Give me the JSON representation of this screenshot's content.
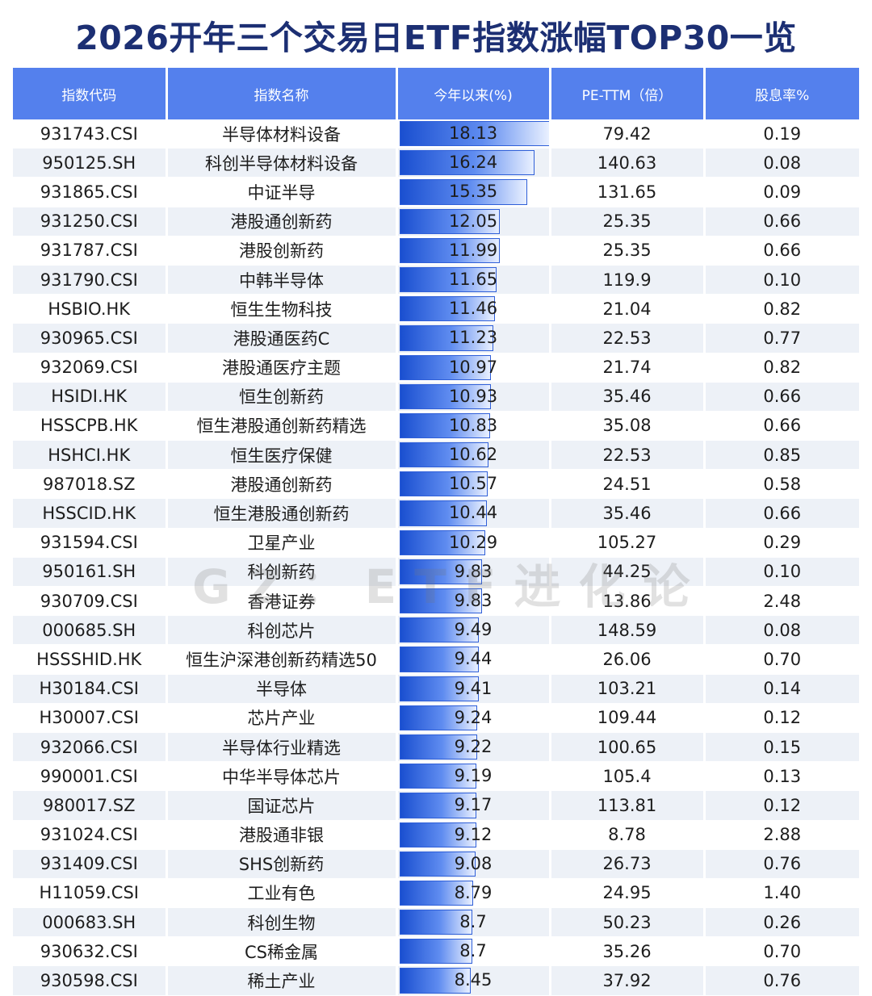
{
  "title": "2026开年三个交易日ETF指数涨幅TOP30一览",
  "watermark": "GZ：ETF进化论",
  "colors": {
    "header_bg": "#5480ed",
    "title": "#1c2f73",
    "bar": "#1a4fd0"
  },
  "headers": [
    "指数代码",
    "指数名称",
    "今年以来(%)",
    "PE-TTM（倍）",
    "股息率%"
  ],
  "bar_max": 18.13,
  "rows": [
    {
      "code": "931743.CSI",
      "name": "半导体材料设备",
      "ytd": "18.13",
      "pe": "79.42",
      "div": "0.19"
    },
    {
      "code": "950125.SH",
      "name": "科创半导体材料设备",
      "ytd": "16.24",
      "pe": "140.63",
      "div": "0.08"
    },
    {
      "code": "931865.CSI",
      "name": "中证半导",
      "ytd": "15.35",
      "pe": "131.65",
      "div": "0.09"
    },
    {
      "code": "931250.CSI",
      "name": "港股通创新药",
      "ytd": "12.05",
      "pe": "25.35",
      "div": "0.66"
    },
    {
      "code": "931787.CSI",
      "name": "港股创新药",
      "ytd": "11.99",
      "pe": "25.35",
      "div": "0.66"
    },
    {
      "code": "931790.CSI",
      "name": "中韩半导体",
      "ytd": "11.65",
      "pe": "119.9",
      "div": "0.10"
    },
    {
      "code": "HSBIO.HK",
      "name": "恒生生物科技",
      "ytd": "11.46",
      "pe": "21.04",
      "div": "0.82"
    },
    {
      "code": "930965.CSI",
      "name": "港股通医药C",
      "ytd": "11.23",
      "pe": "22.53",
      "div": "0.77"
    },
    {
      "code": "932069.CSI",
      "name": "港股通医疗主题",
      "ytd": "10.97",
      "pe": "21.74",
      "div": "0.82"
    },
    {
      "code": "HSIDI.HK",
      "name": "恒生创新药",
      "ytd": "10.93",
      "pe": "35.46",
      "div": "0.66"
    },
    {
      "code": "HSSCPB.HK",
      "name": "恒生港股通创新药精选",
      "ytd": "10.83",
      "pe": "35.08",
      "div": "0.66"
    },
    {
      "code": "HSHCI.HK",
      "name": "恒生医疗保健",
      "ytd": "10.62",
      "pe": "22.53",
      "div": "0.85"
    },
    {
      "code": "987018.SZ",
      "name": "港股通创新药",
      "ytd": "10.57",
      "pe": "24.51",
      "div": "0.58"
    },
    {
      "code": "HSSCID.HK",
      "name": "恒生港股通创新药",
      "ytd": "10.44",
      "pe": "35.46",
      "div": "0.66"
    },
    {
      "code": "931594.CSI",
      "name": "卫星产业",
      "ytd": "10.29",
      "pe": "105.27",
      "div": "0.29"
    },
    {
      "code": "950161.SH",
      "name": "科创新药",
      "ytd": "9.83",
      "pe": "44.25",
      "div": "0.10"
    },
    {
      "code": "930709.CSI",
      "name": "香港证券",
      "ytd": "9.83",
      "pe": "13.86",
      "div": "2.48"
    },
    {
      "code": "000685.SH",
      "name": "科创芯片",
      "ytd": "9.49",
      "pe": "148.59",
      "div": "0.08"
    },
    {
      "code": "HSSSHID.HK",
      "name": "恒生沪深港创新药精选50",
      "ytd": "9.44",
      "pe": "26.06",
      "div": "0.70"
    },
    {
      "code": "H30184.CSI",
      "name": "半导体",
      "ytd": "9.41",
      "pe": "103.21",
      "div": "0.14"
    },
    {
      "code": "H30007.CSI",
      "name": "芯片产业",
      "ytd": "9.24",
      "pe": "109.44",
      "div": "0.12"
    },
    {
      "code": "932066.CSI",
      "name": "半导体行业精选",
      "ytd": "9.22",
      "pe": "100.65",
      "div": "0.15"
    },
    {
      "code": "990001.CSI",
      "name": "中华半导体芯片",
      "ytd": "9.19",
      "pe": "105.4",
      "div": "0.13"
    },
    {
      "code": "980017.SZ",
      "name": "国证芯片",
      "ytd": "9.17",
      "pe": "113.81",
      "div": "0.12"
    },
    {
      "code": "931024.CSI",
      "name": "港股通非银",
      "ytd": "9.12",
      "pe": "8.78",
      "div": "2.88"
    },
    {
      "code": "931409.CSI",
      "name": "SHS创新药",
      "ytd": "9.08",
      "pe": "26.73",
      "div": "0.76"
    },
    {
      "code": "H11059.CSI",
      "name": "工业有色",
      "ytd": "8.79",
      "pe": "24.95",
      "div": "1.40"
    },
    {
      "code": "000683.SH",
      "name": "科创生物",
      "ytd": "8.7",
      "pe": "50.23",
      "div": "0.26"
    },
    {
      "code": "930632.CSI",
      "name": "CS稀金属",
      "ytd": "8.7",
      "pe": "35.26",
      "div": "0.70"
    },
    {
      "code": "930598.CSI",
      "name": "稀土产业",
      "ytd": "8.45",
      "pe": "37.92",
      "div": "0.76"
    }
  ]
}
